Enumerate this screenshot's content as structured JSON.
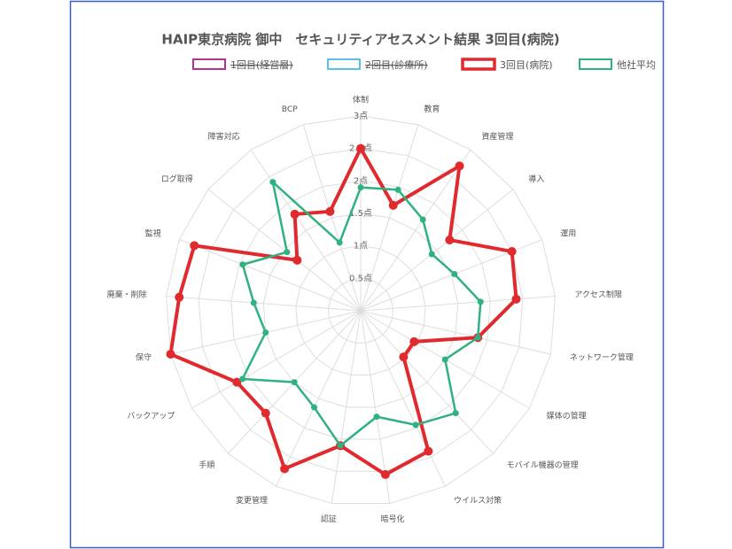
{
  "chart_data": {
    "type": "radar",
    "title": "HAIP東京病院 御中　セキュリティアセスメント結果 3回目(病院)",
    "categories": [
      "体制",
      "教育",
      "資産管理",
      "導入",
      "運用",
      "アクセス制限",
      "ネットワーク管理",
      "媒体の管理",
      "モバイル機器の管理",
      "ウイルス対策",
      "暗号化",
      "認証",
      "変更管理",
      "手順",
      "バックアップ",
      "保守",
      "廃棄・削除",
      "監視",
      "ログ取得",
      "障害対応",
      "BCP"
    ],
    "rlim": [
      0,
      3
    ],
    "rticks": [
      {
        "value": 0.5,
        "label": "0.5点"
      },
      {
        "value": 1,
        "label": "1点"
      },
      {
        "value": 1.5,
        "label": "1.5点"
      },
      {
        "value": 2,
        "label": "2点"
      },
      {
        "value": 2.5,
        "label": "2.5点"
      },
      {
        "value": 3,
        "label": "3点"
      }
    ],
    "grid": true,
    "series": [
      {
        "name": "1回目(経営層)",
        "color": "#b5338a",
        "hidden": true,
        "values": [
          null,
          null,
          null,
          null,
          null,
          null,
          null,
          null,
          null,
          null,
          null,
          null,
          null,
          null,
          null,
          null,
          null,
          null,
          null,
          null,
          null
        ]
      },
      {
        "name": "2回目(診療所)",
        "color": "#5bc0e6",
        "hidden": true,
        "values": [
          null,
          null,
          null,
          null,
          null,
          null,
          null,
          null,
          null,
          null,
          null,
          null,
          null,
          null,
          null,
          null,
          null,
          null,
          null,
          null,
          null
        ]
      },
      {
        "name": "3回目(病院)",
        "color": "#e02a2e",
        "values": [
          2.5,
          1.7,
          2.7,
          1.75,
          2.5,
          2.4,
          1.85,
          0.95,
          0.97,
          2.4,
          2.55,
          2.1,
          2.7,
          2.15,
          2.2,
          3.0,
          2.8,
          2.75,
          1.25,
          1.8,
          1.6
        ]
      },
      {
        "name": "他社平均",
        "color": "#2fb27f",
        "values": [
          1.9,
          1.95,
          1.7,
          1.4,
          1.55,
          1.85,
          1.85,
          1.5,
          2.15,
          1.95,
          1.65,
          2.1,
          1.65,
          1.5,
          2.1,
          1.5,
          1.65,
          1.95,
          1.45,
          2.4,
          1.1
        ]
      }
    ]
  }
}
